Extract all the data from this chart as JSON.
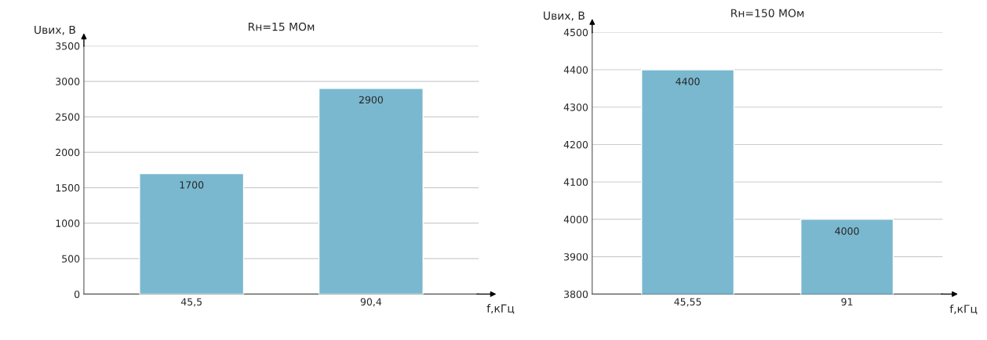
{
  "chart_data": [
    {
      "type": "bar",
      "title": "Rн=15 МОм",
      "ylabel": "Uвих, В",
      "xlabel": "f,кГц",
      "categories": [
        "45,5",
        "90,4"
      ],
      "values": [
        1700,
        2900
      ],
      "color": "#7ab8cf",
      "ylim": [
        0,
        3500
      ],
      "yticks": [
        0,
        500,
        1000,
        1500,
        2000,
        2500,
        3000,
        3500
      ],
      "grid": "y",
      "data_labels": true
    },
    {
      "type": "bar",
      "title": "Rн=150 МОм",
      "ylabel": "Uвих, В",
      "xlabel": "f,кГц",
      "categories": [
        "45,55",
        "91"
      ],
      "values": [
        4400,
        4000
      ],
      "color": "#7ab8cf",
      "ylim": [
        3800,
        4500
      ],
      "yticks": [
        3800,
        3900,
        4000,
        4100,
        4200,
        4300,
        4400,
        4500
      ],
      "grid": "y",
      "data_labels": true
    }
  ]
}
